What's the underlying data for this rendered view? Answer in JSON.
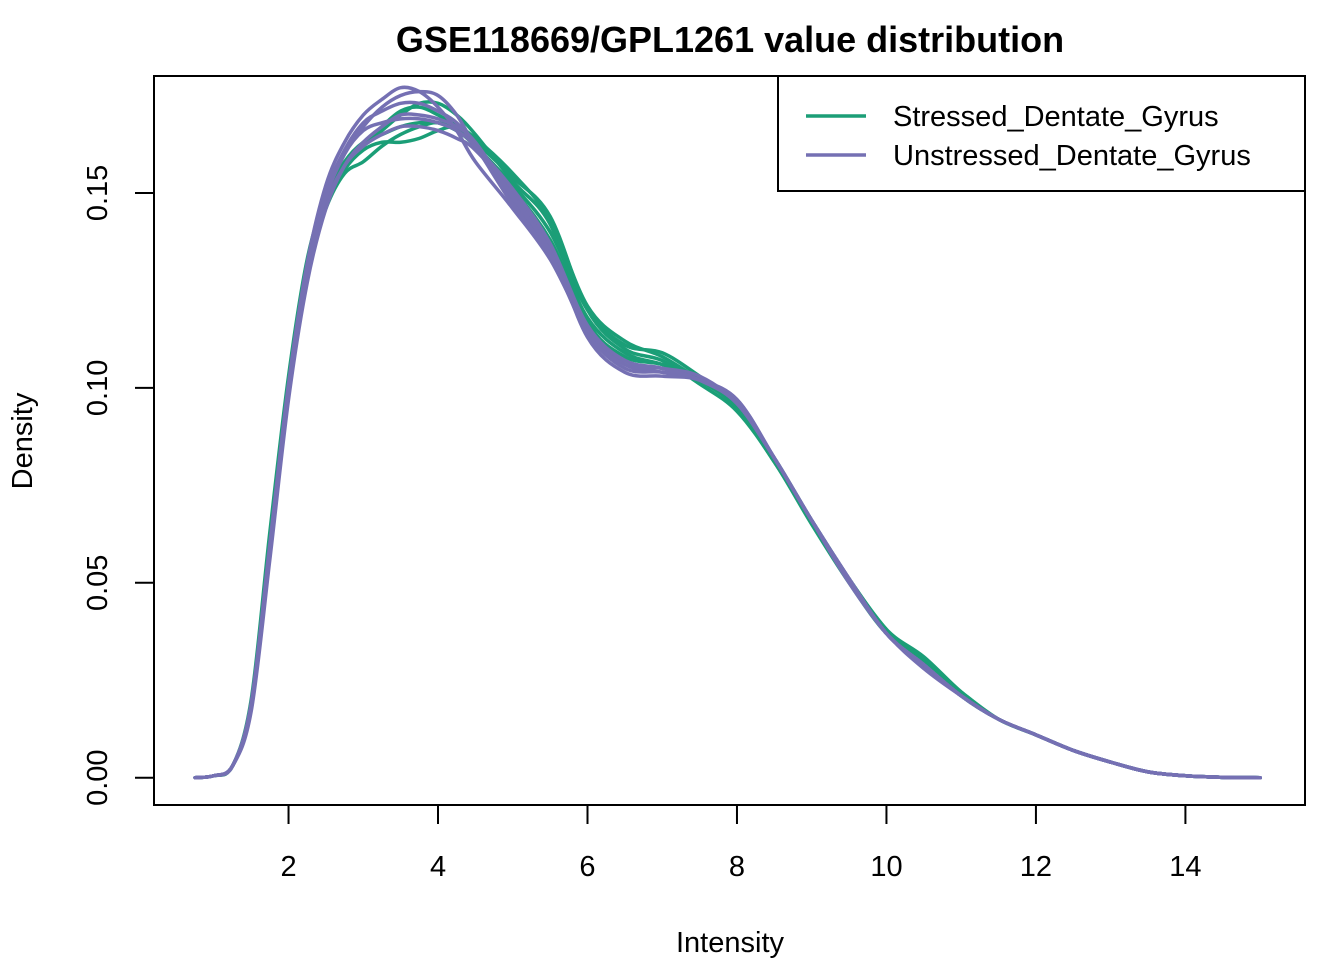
{
  "chart_data": {
    "type": "line",
    "title": "GSE118669/GPL1261 value distribution",
    "xlabel": "Intensity",
    "ylabel": "Density",
    "xlim": [
      0.2,
      15.6
    ],
    "ylim": [
      -0.007,
      0.18
    ],
    "x_ticks": [
      "2",
      "4",
      "6",
      "8",
      "10",
      "12",
      "14"
    ],
    "y_ticks": [
      "0.00",
      "0.05",
      "0.10",
      "0.15"
    ],
    "legend_position": "top-right",
    "groups": [
      {
        "name": "Stressed_Dentate_Gyrus",
        "color": "#1B9E77"
      },
      {
        "name": "Unstressed_Dentate_Gyrus",
        "color": "#7570B3"
      }
    ],
    "x": [
      0.75,
      1.0,
      1.25,
      1.5,
      1.75,
      2.0,
      2.25,
      2.5,
      2.75,
      3.0,
      3.25,
      3.5,
      3.75,
      4.0,
      4.25,
      4.5,
      5.0,
      5.5,
      6.0,
      6.5,
      7.0,
      7.5,
      8.0,
      8.5,
      9.0,
      9.5,
      10.0,
      10.5,
      11.0,
      11.5,
      12.0,
      12.5,
      13.0,
      13.5,
      14.0,
      14.5,
      15.0
    ],
    "series": [
      {
        "group": 0,
        "values": [
          0.0,
          0.0005,
          0.003,
          0.018,
          0.06,
          0.1,
          0.13,
          0.146,
          0.155,
          0.158,
          0.162,
          0.165,
          0.167,
          0.168,
          0.166,
          0.162,
          0.152,
          0.14,
          0.12,
          0.111,
          0.109,
          0.103,
          0.096,
          0.082,
          0.066,
          0.051,
          0.038,
          0.03,
          0.022,
          0.015,
          0.011,
          0.007,
          0.004,
          0.0015,
          0.0005,
          0.0001,
          0.0
        ]
      },
      {
        "group": 0,
        "values": [
          0.0,
          0.0005,
          0.003,
          0.019,
          0.062,
          0.102,
          0.132,
          0.148,
          0.157,
          0.162,
          0.166,
          0.17,
          0.173,
          0.173,
          0.17,
          0.165,
          0.153,
          0.142,
          0.117,
          0.108,
          0.106,
          0.102,
          0.095,
          0.081,
          0.066,
          0.051,
          0.037,
          0.029,
          0.021,
          0.015,
          0.011,
          0.007,
          0.004,
          0.0015,
          0.0005,
          0.0001,
          0.0
        ]
      },
      {
        "group": 0,
        "values": [
          0.0,
          0.0005,
          0.003,
          0.018,
          0.06,
          0.101,
          0.131,
          0.147,
          0.156,
          0.162,
          0.167,
          0.171,
          0.172,
          0.17,
          0.167,
          0.162,
          0.151,
          0.138,
          0.118,
          0.109,
          0.106,
          0.102,
          0.095,
          0.082,
          0.066,
          0.051,
          0.038,
          0.029,
          0.021,
          0.015,
          0.011,
          0.007,
          0.004,
          0.0015,
          0.0005,
          0.0001,
          0.0
        ]
      },
      {
        "group": 0,
        "values": [
          0.0,
          0.0005,
          0.003,
          0.02,
          0.063,
          0.103,
          0.133,
          0.149,
          0.158,
          0.163,
          0.165,
          0.167,
          0.168,
          0.168,
          0.166,
          0.163,
          0.154,
          0.144,
          0.12,
          0.11,
          0.107,
          0.101,
          0.094,
          0.081,
          0.065,
          0.05,
          0.037,
          0.03,
          0.021,
          0.015,
          0.011,
          0.007,
          0.004,
          0.0015,
          0.0005,
          0.0001,
          0.0
        ]
      },
      {
        "group": 0,
        "values": [
          0.0,
          0.0005,
          0.003,
          0.018,
          0.059,
          0.1,
          0.13,
          0.147,
          0.156,
          0.161,
          0.163,
          0.163,
          0.164,
          0.166,
          0.167,
          0.164,
          0.155,
          0.143,
          0.121,
          0.112,
          0.108,
          0.102,
          0.095,
          0.081,
          0.066,
          0.051,
          0.038,
          0.031,
          0.022,
          0.015,
          0.011,
          0.007,
          0.004,
          0.0015,
          0.0005,
          0.0001,
          0.0
        ]
      },
      {
        "group": 1,
        "values": [
          0.0,
          0.0005,
          0.003,
          0.019,
          0.06,
          0.101,
          0.132,
          0.152,
          0.163,
          0.17,
          0.174,
          0.177,
          0.176,
          0.172,
          0.166,
          0.158,
          0.146,
          0.133,
          0.115,
          0.106,
          0.104,
          0.102,
          0.097,
          0.082,
          0.066,
          0.05,
          0.037,
          0.028,
          0.021,
          0.015,
          0.011,
          0.007,
          0.004,
          0.0015,
          0.0005,
          0.0001,
          0.0
        ]
      },
      {
        "group": 1,
        "values": [
          0.0,
          0.0005,
          0.003,
          0.018,
          0.058,
          0.099,
          0.13,
          0.149,
          0.16,
          0.167,
          0.172,
          0.175,
          0.176,
          0.175,
          0.17,
          0.162,
          0.148,
          0.134,
          0.114,
          0.105,
          0.104,
          0.102,
          0.097,
          0.082,
          0.066,
          0.051,
          0.037,
          0.029,
          0.021,
          0.015,
          0.011,
          0.007,
          0.004,
          0.0015,
          0.0005,
          0.0001,
          0.0
        ]
      },
      {
        "group": 1,
        "values": [
          0.0,
          0.0005,
          0.003,
          0.018,
          0.057,
          0.098,
          0.128,
          0.147,
          0.157,
          0.162,
          0.165,
          0.167,
          0.167,
          0.166,
          0.164,
          0.161,
          0.15,
          0.136,
          0.113,
          0.104,
          0.103,
          0.102,
          0.096,
          0.082,
          0.066,
          0.051,
          0.037,
          0.029,
          0.021,
          0.015,
          0.011,
          0.007,
          0.004,
          0.0015,
          0.0005,
          0.0001,
          0.0
        ]
      },
      {
        "group": 1,
        "values": [
          0.0,
          0.0005,
          0.003,
          0.017,
          0.056,
          0.097,
          0.127,
          0.146,
          0.157,
          0.163,
          0.167,
          0.17,
          0.17,
          0.169,
          0.167,
          0.163,
          0.149,
          0.135,
          0.114,
          0.106,
          0.105,
          0.103,
          0.096,
          0.082,
          0.066,
          0.051,
          0.037,
          0.029,
          0.021,
          0.015,
          0.011,
          0.007,
          0.004,
          0.0015,
          0.0005,
          0.0001,
          0.0
        ]
      },
      {
        "group": 1,
        "values": [
          0.0,
          0.0005,
          0.003,
          0.019,
          0.059,
          0.1,
          0.131,
          0.15,
          0.161,
          0.168,
          0.171,
          0.173,
          0.173,
          0.171,
          0.168,
          0.162,
          0.147,
          0.134,
          0.115,
          0.107,
          0.105,
          0.102,
          0.096,
          0.082,
          0.066,
          0.051,
          0.037,
          0.029,
          0.021,
          0.015,
          0.011,
          0.007,
          0.004,
          0.0015,
          0.0005,
          0.0001,
          0.0
        ]
      },
      {
        "group": 1,
        "values": [
          0.0,
          0.0005,
          0.003,
          0.018,
          0.058,
          0.099,
          0.13,
          0.149,
          0.16,
          0.166,
          0.168,
          0.169,
          0.169,
          0.168,
          0.166,
          0.162,
          0.151,
          0.137,
          0.116,
          0.107,
          0.105,
          0.102,
          0.096,
          0.082,
          0.066,
          0.051,
          0.037,
          0.029,
          0.021,
          0.015,
          0.011,
          0.007,
          0.004,
          0.0015,
          0.0005,
          0.0001,
          0.0
        ]
      }
    ]
  }
}
